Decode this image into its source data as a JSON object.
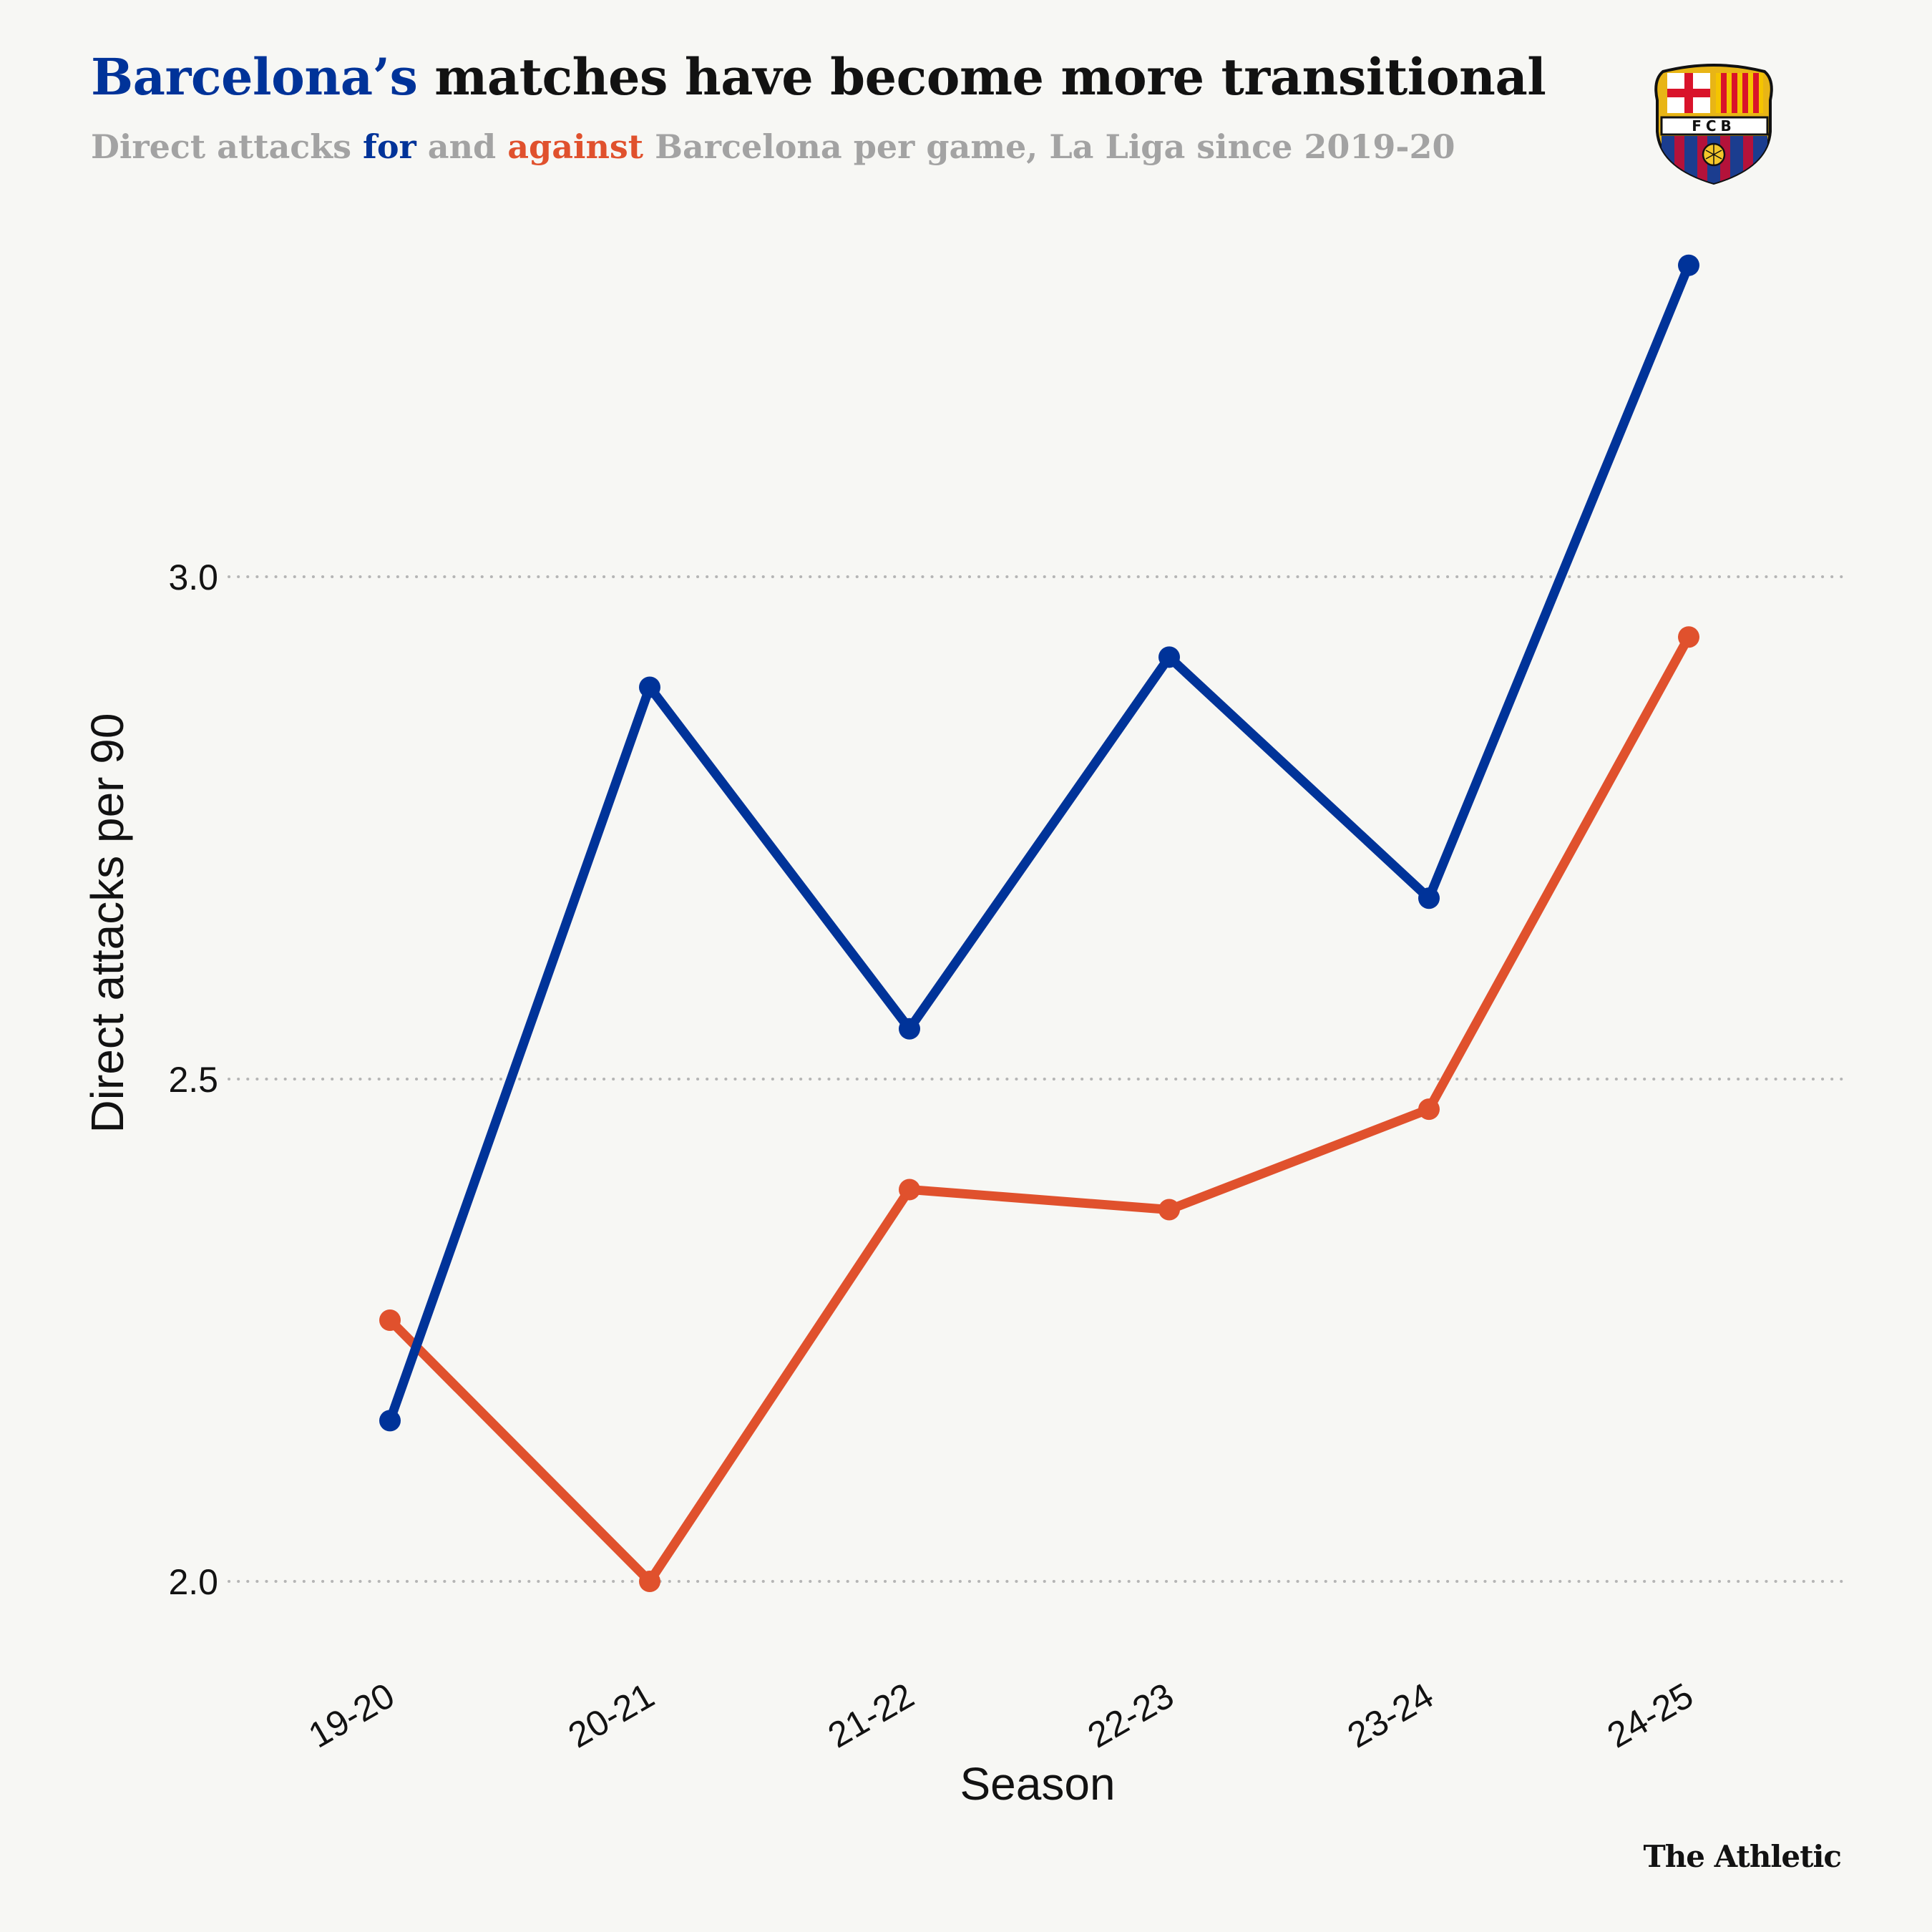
{
  "header": {
    "title_highlight": "Barcelona’s",
    "title_rest": " matches have become more transitional",
    "subtitle_part1": "Direct attacks ",
    "subtitle_for": "for",
    "subtitle_part2": " and ",
    "subtitle_against": "against",
    "subtitle_part3": " Barcelona per game, La Liga since 2019-20"
  },
  "logo": {
    "icon": "fc-barcelona-crest-icon",
    "text": "FCB"
  },
  "footer": {
    "brand": "The Athletic"
  },
  "colors": {
    "for": "#003399",
    "against": "#e0512d",
    "grid": "#b5b5b5",
    "background": "#f7f7f4"
  },
  "chart_data": {
    "type": "line",
    "categories": [
      "19-20",
      "20-21",
      "21-22",
      "22-23",
      "23-24",
      "24-25"
    ],
    "series": [
      {
        "name": "for",
        "color": "#003399",
        "values": [
          2.16,
          2.89,
          2.55,
          2.92,
          2.68,
          3.31
        ]
      },
      {
        "name": "against",
        "color": "#e0512d",
        "values": [
          2.26,
          2.0,
          2.39,
          2.37,
          2.47,
          2.94
        ]
      }
    ],
    "xlabel": "Season",
    "ylabel": "Direct attacks per 90",
    "ylim": [
      1.96,
      3.32
    ],
    "yticks": [
      "2.0",
      "2.5",
      "3.0"
    ],
    "grid": "horizontal dotted"
  }
}
